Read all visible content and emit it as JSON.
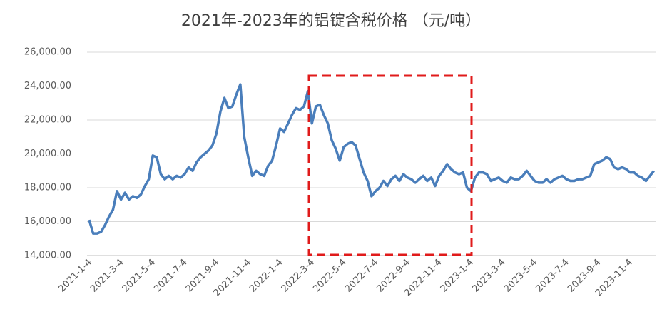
{
  "chart_data": {
    "type": "line",
    "title": "2021年-2023年的铝锭含税价格 （元/吨）",
    "categories": [
      "2021-1-4",
      null,
      null,
      null,
      null,
      null,
      null,
      null,
      "2021-3-4",
      null,
      null,
      null,
      null,
      null,
      null,
      null,
      "2021-5-4",
      null,
      null,
      null,
      null,
      null,
      null,
      null,
      "2021-7-4",
      null,
      null,
      null,
      null,
      null,
      null,
      null,
      "2021-9-4",
      null,
      null,
      null,
      null,
      null,
      null,
      null,
      "2021-11-4",
      null,
      null,
      null,
      null,
      null,
      null,
      null,
      "2022-1-4",
      null,
      null,
      null,
      null,
      null,
      null,
      null,
      "2022-3-4",
      null,
      null,
      null,
      null,
      null,
      null,
      null,
      "2022-5-4",
      null,
      null,
      null,
      null,
      null,
      null,
      null,
      "2022-7-4",
      null,
      null,
      null,
      null,
      null,
      null,
      null,
      "2022-9-4",
      null,
      null,
      null,
      null,
      null,
      null,
      null,
      "2022-11-4",
      null,
      null,
      null,
      null,
      null,
      null,
      null,
      "2023-1-4",
      null,
      null,
      null,
      null,
      null,
      null,
      null,
      "2023-3-4",
      null,
      null,
      null,
      null,
      null,
      null,
      null,
      "2023-5-4",
      null,
      null,
      null,
      null,
      null,
      null,
      null,
      "2023-7-4",
      null,
      null,
      null,
      null,
      null,
      null,
      null,
      "2023-9-4",
      null,
      null,
      null,
      null,
      null,
      null,
      null,
      "2023-11-4",
      null,
      null,
      null,
      null,
      null,
      null
    ],
    "series": [
      {
        "color": "#4a7ebb",
        "values": [
          16100,
          15300,
          15300,
          15400,
          15800,
          16300,
          16700,
          17800,
          17300,
          17700,
          17300,
          17500,
          17400,
          17600,
          18100,
          18500,
          19900,
          19800,
          18800,
          18500,
          18700,
          18500,
          18700,
          18600,
          18800,
          19200,
          19000,
          19500,
          19800,
          20000,
          20200,
          20500,
          21200,
          22500,
          23300,
          22700,
          22800,
          23500,
          24100,
          21000,
          19800,
          18700,
          19000,
          18800,
          18700,
          19300,
          19600,
          20500,
          21500,
          21300,
          21800,
          22300,
          22700,
          22600,
          22800,
          23700,
          21800,
          22800,
          22900,
          22300,
          21800,
          20800,
          20300,
          19600,
          20400,
          20600,
          20700,
          20500,
          19700,
          18900,
          18400,
          17500,
          17800,
          18000,
          18400,
          18100,
          18500,
          18700,
          18400,
          18800,
          18600,
          18500,
          18300,
          18500,
          18700,
          18400,
          18600,
          18100,
          18700,
          19000,
          19400,
          19100,
          18900,
          18800,
          18900,
          18000,
          17800,
          18600,
          18900,
          18900,
          18800,
          18400,
          18500,
          18600,
          18400,
          18300,
          18600,
          18500,
          18500,
          18700,
          19000,
          18700,
          18400,
          18300,
          18300,
          18500,
          18300,
          18500,
          18600,
          18700,
          18500,
          18400,
          18400,
          18500,
          18500,
          18600,
          18700,
          19400,
          19500,
          19600,
          19800,
          19700,
          19200,
          19100,
          19200,
          19100,
          18900,
          18900,
          18700,
          18600,
          18400,
          18700,
          19000
        ]
      }
    ],
    "ylim": [
      14000,
      26000
    ],
    "yticks": [
      {
        "value": 14000,
        "label": "14,000.00"
      },
      {
        "value": 16000,
        "label": "16,000.00"
      },
      {
        "value": 18000,
        "label": "18,000.00"
      },
      {
        "value": 20000,
        "label": "20,000.00"
      },
      {
        "value": 22000,
        "label": "22,000.00"
      },
      {
        "value": 24000,
        "label": "24,000.00"
      },
      {
        "value": 26000,
        "label": "26,000.00"
      }
    ],
    "grid": true
  }
}
